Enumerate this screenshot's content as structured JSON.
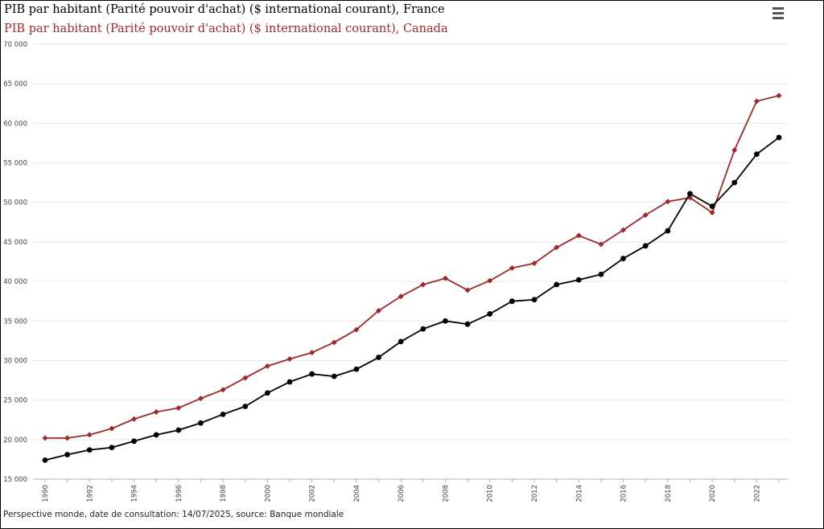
{
  "titles": {
    "france": "PIB par habitant (Parité pouvoir d'achat) ($ international courant), France",
    "canada": "PIB par habitant (Parité pouvoir d'achat) ($ international courant), Canada"
  },
  "source": "Perspective monde, date de consultation: 14/07/2025, source: Banque mondiale",
  "menu_icon": "hamburger-menu-icon",
  "colors": {
    "france": "#000000",
    "canada": "#9c2a2a",
    "grid": "#e6e6e6"
  },
  "chart_data": {
    "type": "line",
    "x": [
      1990,
      1991,
      1992,
      1993,
      1994,
      1995,
      1996,
      1997,
      1998,
      1999,
      2000,
      2001,
      2002,
      2003,
      2004,
      2005,
      2006,
      2007,
      2008,
      2009,
      2010,
      2011,
      2012,
      2013,
      2014,
      2015,
      2016,
      2017,
      2018,
      2019,
      2020,
      2021,
      2022,
      2023
    ],
    "x_tick_labels": [
      "1990",
      "1992",
      "1994",
      "1996",
      "1998",
      "2000",
      "2002",
      "2004",
      "2006",
      "2008",
      "2010",
      "2012",
      "2014",
      "2016",
      "2018",
      "2020",
      "2022"
    ],
    "y_tick_labels": [
      "15 000",
      "20 000",
      "25 000",
      "30 000",
      "35 000",
      "40 000",
      "45 000",
      "50 000",
      "55 000",
      "60 000",
      "65 000",
      "70 000"
    ],
    "ylim": [
      15000,
      70000
    ],
    "grid": true,
    "series": [
      {
        "name": "France",
        "marker": "circle",
        "values": [
          17400,
          18100,
          18700,
          19000,
          19800,
          20600,
          21200,
          22100,
          23200,
          24200,
          25900,
          27300,
          28300,
          28000,
          28900,
          30400,
          32400,
          34000,
          35000,
          34600,
          35900,
          37500,
          37700,
          39600,
          40200,
          40900,
          42900,
          44500,
          46400,
          51100,
          49500,
          52500,
          56100,
          58200
        ]
      },
      {
        "name": "Canada",
        "marker": "diamond",
        "values": [
          20200,
          20200,
          20600,
          21400,
          22600,
          23500,
          24000,
          25200,
          26300,
          27800,
          29300,
          30200,
          31000,
          32300,
          33900,
          36300,
          38100,
          39600,
          40400,
          38900,
          40100,
          41700,
          42300,
          44300,
          45800,
          44700,
          46500,
          48400,
          50100,
          50600,
          48700,
          56600,
          62800,
          63500
        ]
      }
    ]
  }
}
